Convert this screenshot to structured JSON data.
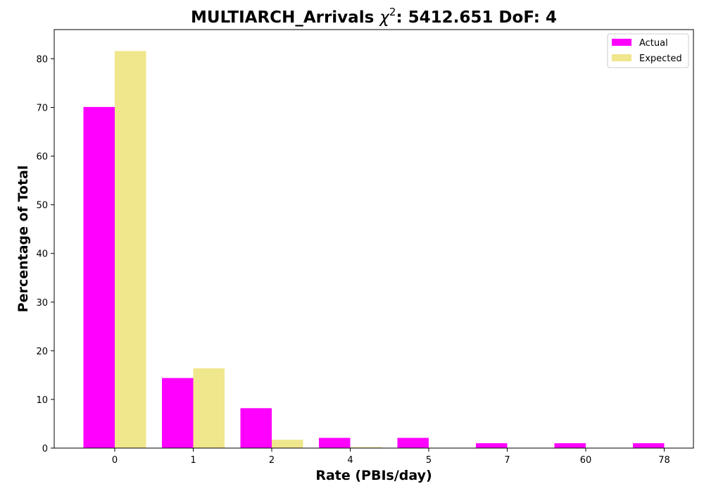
{
  "chart_data": {
    "type": "bar",
    "title_prefix": "MULTIARCH_Arrivals ",
    "title_symbol": "χ",
    "title_superscript": "2",
    "title_suffix": ": 5412.651 DoF: 4",
    "xlabel": "Rate (PBIs/day)",
    "ylabel": "Percentage of Total",
    "categories": [
      "0",
      "1",
      "2",
      "4",
      "5",
      "7",
      "60",
      "78"
    ],
    "series": [
      {
        "name": "Actual",
        "color": "#ff00ff",
        "values": [
          70.1,
          14.4,
          8.2,
          2.1,
          2.1,
          1.0,
          1.0,
          1.0
        ]
      },
      {
        "name": "Expected",
        "color": "#f0e68c",
        "values": [
          81.6,
          16.4,
          1.7,
          0.2,
          0.0,
          0.0,
          0.0,
          0.0
        ]
      }
    ],
    "ylim": [
      0,
      86
    ],
    "yticks": [
      0,
      10,
      20,
      30,
      40,
      50,
      60,
      70,
      80
    ],
    "legend_position": "top-right",
    "grid": false
  }
}
